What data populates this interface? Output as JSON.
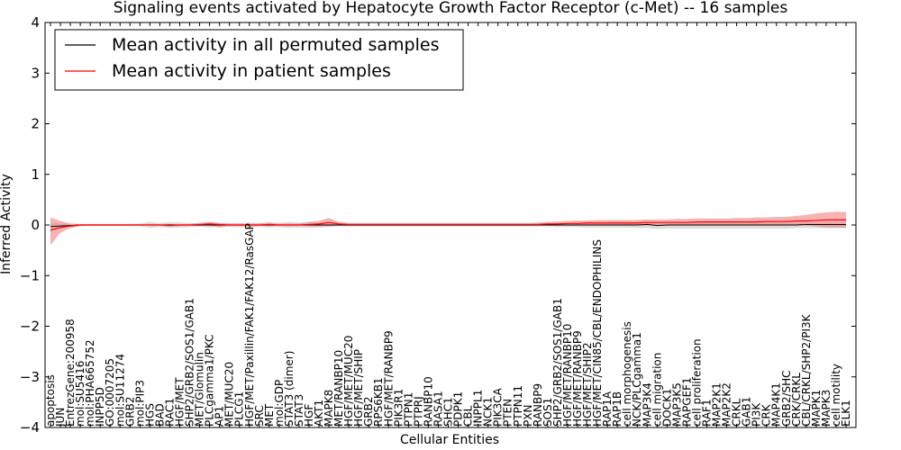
{
  "chart_data": {
    "type": "line",
    "title": "Signaling events activated by Hepatocyte Growth Factor Receptor (c-Met) -- 16 samples",
    "xlabel": "Cellular Entities",
    "ylabel": "Inferred Activity",
    "ylim": [
      -4,
      4
    ],
    "yticks": [
      4,
      3,
      2,
      1,
      0,
      -1,
      -2,
      -3,
      -4
    ],
    "ytick_labels": [
      "4",
      "3",
      "2",
      "1",
      "0",
      "−1",
      "−2",
      "−3",
      "−4"
    ],
    "grid": false,
    "legend_position": "top-left",
    "categories": [
      "apoptosis",
      "JUN",
      "EntrezGene:200958",
      "mol:SU5416",
      "mol:PHA665752",
      "INPP5D",
      "GO:0007205",
      "mol:SU11274",
      "GRB2",
      "mol:PIP3",
      "HGS",
      "BAD",
      "RAC1",
      "HGF/MET",
      "SHP2/GRB2/SOS1/GAB1",
      "MET/Glomulin",
      "PLCgamma1/PKC",
      "AP1",
      "MET/MUC20",
      "PLCG1",
      "HGF/MET/Paxillin/FAK1/FAK12/RasGAP",
      "SRC",
      "MET",
      "mol:GDP",
      "STAT3 (dimer)",
      "STAT3",
      "HGF",
      "AKT1",
      "MAPK8",
      "MET/RANBP10",
      "HGF/MET/MUC20",
      "HGF/MET/SHIP",
      "GRB2",
      "RPS6KB1",
      "HGF/MET/RANBP9",
      "PIK3R1",
      "PTPN1",
      "PTPRJ",
      "RANBP10",
      "RASA1",
      "SHC1",
      "PDPK1",
      "CBL",
      "INPPL1",
      "NCK1",
      "PIK3CA",
      "PTEN",
      "PTPN11",
      "PXN",
      "RANBP9",
      "SOS1",
      "SHP2/GRB2/SOS1/GAB1",
      "HGF/MET/RANBP10",
      "HGF/MET/RANBP9",
      "HGF/MET/SHIP2",
      "HGF/MET/CIN85/CBL/ENDOPHILINS",
      "RAP1A",
      "RAP1B",
      "cell morphogenesis",
      "NCK/PLCgamma1",
      "MAP3K4",
      "cell migration",
      "DOCK1",
      "MAP3K5",
      "RAPGEF1",
      "cell proliferation",
      "RAF1",
      "MAP2K1",
      "MAP2K2",
      "CRKL",
      "GAB1",
      "PI3K",
      "CRK",
      "MAP4K1",
      "GRB2/SHC",
      "CRK/CRKL",
      "CBL/CRKL/SHP2/PI3K",
      "MAPK1",
      "MAPK3",
      "cell motility",
      "ELK1"
    ],
    "series": [
      {
        "name": "Mean activity in all permuted samples",
        "color": "#000000",
        "band_color": "#bfbfbf",
        "values": [
          -0.03,
          -0.02,
          -0.01,
          0,
          0,
          0,
          0,
          0,
          0,
          0,
          0,
          0,
          0,
          0,
          0,
          0,
          0,
          0,
          0,
          0,
          0,
          0,
          0,
          0,
          0,
          0,
          0,
          0,
          0,
          0,
          0,
          0,
          0,
          0,
          0,
          0,
          0,
          0,
          0,
          0,
          0,
          0,
          0,
          0,
          0,
          0,
          0,
          0,
          0,
          0,
          0,
          0,
          0,
          0,
          0,
          0,
          0,
          0,
          0,
          0,
          0.01,
          -0.01,
          0,
          0,
          0,
          0,
          0,
          0,
          0,
          0,
          0,
          0,
          0,
          0,
          0,
          0,
          0.01,
          0.01,
          0.01,
          0.01,
          0.01
        ],
        "lower": [
          -0.08,
          -0.05,
          -0.03,
          -0.02,
          -0.02,
          -0.02,
          -0.02,
          -0.02,
          -0.02,
          -0.02,
          -0.06,
          -0.04,
          -0.06,
          -0.05,
          -0.04,
          -0.03,
          -0.05,
          -0.03,
          -0.04,
          -0.04,
          -0.05,
          -0.03,
          -0.05,
          -0.04,
          -0.06,
          -0.05,
          -0.06,
          -0.05,
          -0.04,
          -0.03,
          -0.03,
          -0.03,
          -0.03,
          -0.03,
          -0.03,
          -0.03,
          -0.03,
          -0.03,
          -0.03,
          -0.03,
          -0.03,
          -0.03,
          -0.03,
          -0.03,
          -0.03,
          -0.03,
          -0.03,
          -0.03,
          -0.03,
          -0.03,
          -0.03,
          -0.04,
          -0.04,
          -0.04,
          -0.05,
          -0.05,
          -0.05,
          -0.05,
          -0.05,
          -0.06,
          -0.06,
          -0.08,
          -0.07,
          -0.07,
          -0.07,
          -0.07,
          -0.07,
          -0.07,
          -0.07,
          -0.07,
          -0.07,
          -0.07,
          -0.07,
          -0.07,
          -0.07,
          -0.06,
          -0.06,
          -0.06,
          -0.06,
          -0.06,
          -0.06
        ],
        "upper": [
          0.05,
          0.03,
          0.02,
          0.02,
          0.02,
          0.02,
          0.02,
          0.02,
          0.02,
          0.03,
          0.06,
          0.04,
          0.06,
          0.05,
          0.04,
          0.04,
          0.05,
          0.04,
          0.04,
          0.04,
          0.05,
          0.04,
          0.05,
          0.04,
          0.06,
          0.05,
          0.06,
          0.05,
          0.04,
          0.03,
          0.03,
          0.03,
          0.03,
          0.03,
          0.03,
          0.03,
          0.03,
          0.03,
          0.03,
          0.03,
          0.03,
          0.03,
          0.03,
          0.03,
          0.03,
          0.03,
          0.03,
          0.03,
          0.03,
          0.04,
          0.04,
          0.04,
          0.04,
          0.04,
          0.05,
          0.05,
          0.05,
          0.05,
          0.05,
          0.06,
          0.07,
          0.05,
          0.06,
          0.06,
          0.06,
          0.06,
          0.06,
          0.06,
          0.06,
          0.06,
          0.06,
          0.06,
          0.06,
          0.06,
          0.06,
          0.06,
          0.06,
          0.06,
          0.06,
          0.06,
          0.06
        ]
      },
      {
        "name": "Mean activity in patient samples",
        "color": "#ff0000",
        "band_color": "#f08080",
        "values": [
          -0.1,
          -0.05,
          -0.02,
          0,
          0,
          0,
          0,
          0,
          0,
          0,
          0,
          0,
          -0.01,
          0,
          0,
          0.01,
          0.02,
          0.01,
          0,
          0,
          0,
          0,
          0.01,
          0,
          0,
          0,
          0.01,
          0.02,
          0.05,
          0.02,
          0.01,
          0.01,
          0.01,
          0.01,
          0.01,
          0.01,
          0.01,
          0.01,
          0.01,
          0.01,
          0.01,
          0.01,
          0.01,
          0.01,
          0.01,
          0.01,
          0.01,
          0.01,
          0.01,
          0.01,
          0.02,
          0.02,
          0.03,
          0.03,
          0.04,
          0.04,
          0.04,
          0.04,
          0.04,
          0.04,
          0.05,
          0.05,
          0.05,
          0.05,
          0.05,
          0.06,
          0.06,
          0.06,
          0.06,
          0.06,
          0.06,
          0.06,
          0.07,
          0.07,
          0.07,
          0.08,
          0.08,
          0.09,
          0.1,
          0.1,
          0.1
        ],
        "lower": [
          -0.4,
          -0.15,
          -0.06,
          -0.02,
          -0.01,
          -0.01,
          -0.01,
          -0.01,
          -0.01,
          -0.01,
          -0.01,
          -0.01,
          -0.03,
          -0.02,
          -0.02,
          -0.02,
          -0.01,
          -0.05,
          -0.02,
          -0.02,
          -0.03,
          -0.02,
          -0.02,
          -0.02,
          -0.02,
          -0.02,
          -0.02,
          -0.03,
          -0.02,
          -0.01,
          -0.01,
          -0.01,
          -0.01,
          -0.01,
          -0.01,
          -0.01,
          -0.01,
          -0.01,
          -0.01,
          -0.01,
          -0.01,
          -0.01,
          -0.01,
          -0.01,
          -0.01,
          -0.01,
          -0.01,
          -0.01,
          -0.01,
          -0.01,
          -0.01,
          -0.01,
          -0.01,
          -0.01,
          -0.01,
          -0.01,
          -0.01,
          -0.01,
          -0.01,
          -0.01,
          -0.01,
          -0.01,
          -0.01,
          -0.01,
          -0.01,
          -0.01,
          -0.01,
          -0.01,
          -0.01,
          -0.01,
          -0.01,
          -0.01,
          -0.01,
          -0.01,
          -0.01,
          -0.01,
          -0.01,
          -0.03,
          -0.05,
          -0.05,
          -0.05
        ],
        "upper": [
          0.15,
          0.08,
          0.03,
          0.02,
          0.02,
          0.02,
          0.02,
          0.02,
          0.02,
          0.02,
          0.02,
          0.02,
          0.02,
          0.02,
          0.02,
          0.04,
          0.06,
          0.04,
          0.03,
          0.03,
          0.03,
          0.03,
          0.05,
          0.03,
          0.03,
          0.03,
          0.06,
          0.08,
          0.14,
          0.06,
          0.04,
          0.04,
          0.04,
          0.04,
          0.04,
          0.04,
          0.04,
          0.04,
          0.04,
          0.04,
          0.04,
          0.04,
          0.04,
          0.04,
          0.04,
          0.04,
          0.04,
          0.04,
          0.04,
          0.05,
          0.06,
          0.07,
          0.08,
          0.09,
          0.09,
          0.1,
          0.1,
          0.1,
          0.1,
          0.1,
          0.11,
          0.11,
          0.11,
          0.12,
          0.12,
          0.13,
          0.13,
          0.13,
          0.13,
          0.14,
          0.14,
          0.15,
          0.15,
          0.16,
          0.16,
          0.18,
          0.2,
          0.23,
          0.25,
          0.26,
          0.26
        ]
      }
    ]
  }
}
